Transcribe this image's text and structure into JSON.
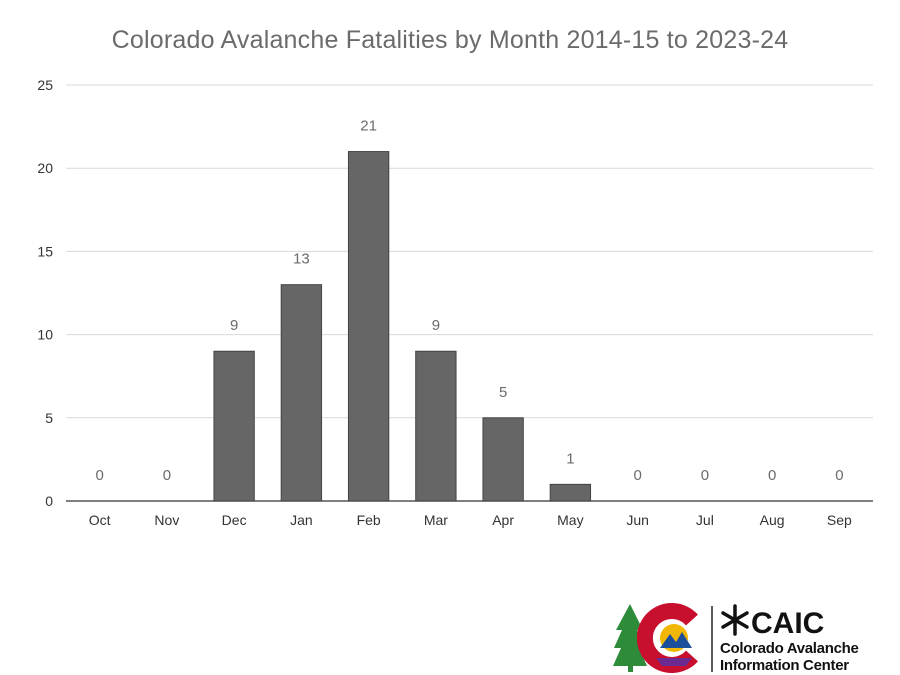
{
  "chart_data": {
    "type": "bar",
    "title": "Colorado Avalanche Fatalities by Month 2014-15 to 2023-24",
    "xlabel": "",
    "ylabel": "",
    "categories": [
      "Oct",
      "Nov",
      "Dec",
      "Jan",
      "Feb",
      "Mar",
      "Apr",
      "May",
      "Jun",
      "Jul",
      "Aug",
      "Sep"
    ],
    "values": [
      0,
      0,
      9,
      13,
      21,
      9,
      5,
      1,
      0,
      0,
      0,
      0
    ],
    "ylim": [
      0,
      25
    ],
    "yticks": [
      0,
      5,
      10,
      15,
      20,
      25
    ],
    "grid": true,
    "legend": "none",
    "bar_color": "#666666",
    "data_labels": true
  },
  "logo": {
    "name": "CAIC",
    "line1": "Colorado Avalanche",
    "line2": "Information Center",
    "mark": "colorado-c-mountain-logo"
  }
}
